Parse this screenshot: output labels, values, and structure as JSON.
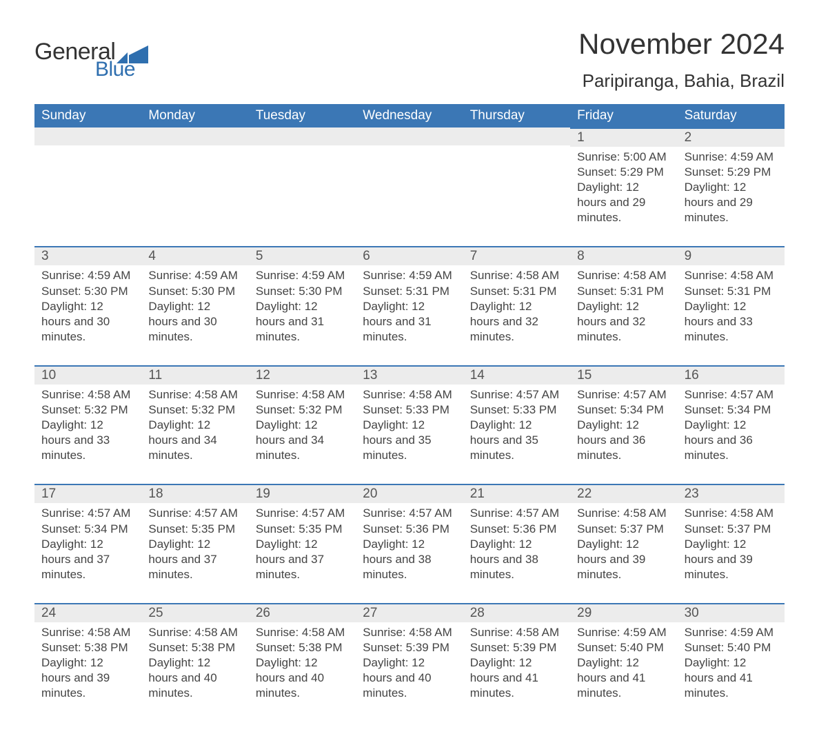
{
  "logo": {
    "word1": "General",
    "word2": "Blue",
    "flag_color": "#2f6faf",
    "text_color": "#333333"
  },
  "title": "November 2024",
  "location": "Paripiranga, Bahia, Brazil",
  "colors": {
    "header_bg": "#3b77b5",
    "header_text": "#ffffff",
    "band_bg": "#ececec",
    "band_border": "#3b77b5",
    "body_text": "#444444",
    "page_bg": "#ffffff"
  },
  "weekdays": [
    "Sunday",
    "Monday",
    "Tuesday",
    "Wednesday",
    "Thursday",
    "Friday",
    "Saturday"
  ],
  "labels": {
    "sunrise": "Sunrise: ",
    "sunset": "Sunset: ",
    "daylight": "Daylight: "
  },
  "weeks": [
    [
      null,
      null,
      null,
      null,
      null,
      {
        "n": "1",
        "sunrise": "5:00 AM",
        "sunset": "5:29 PM",
        "daylight": "12 hours and 29 minutes."
      },
      {
        "n": "2",
        "sunrise": "4:59 AM",
        "sunset": "5:29 PM",
        "daylight": "12 hours and 29 minutes."
      }
    ],
    [
      {
        "n": "3",
        "sunrise": "4:59 AM",
        "sunset": "5:30 PM",
        "daylight": "12 hours and 30 minutes."
      },
      {
        "n": "4",
        "sunrise": "4:59 AM",
        "sunset": "5:30 PM",
        "daylight": "12 hours and 30 minutes."
      },
      {
        "n": "5",
        "sunrise": "4:59 AM",
        "sunset": "5:30 PM",
        "daylight": "12 hours and 31 minutes."
      },
      {
        "n": "6",
        "sunrise": "4:59 AM",
        "sunset": "5:31 PM",
        "daylight": "12 hours and 31 minutes."
      },
      {
        "n": "7",
        "sunrise": "4:58 AM",
        "sunset": "5:31 PM",
        "daylight": "12 hours and 32 minutes."
      },
      {
        "n": "8",
        "sunrise": "4:58 AM",
        "sunset": "5:31 PM",
        "daylight": "12 hours and 32 minutes."
      },
      {
        "n": "9",
        "sunrise": "4:58 AM",
        "sunset": "5:31 PM",
        "daylight": "12 hours and 33 minutes."
      }
    ],
    [
      {
        "n": "10",
        "sunrise": "4:58 AM",
        "sunset": "5:32 PM",
        "daylight": "12 hours and 33 minutes."
      },
      {
        "n": "11",
        "sunrise": "4:58 AM",
        "sunset": "5:32 PM",
        "daylight": "12 hours and 34 minutes."
      },
      {
        "n": "12",
        "sunrise": "4:58 AM",
        "sunset": "5:32 PM",
        "daylight": "12 hours and 34 minutes."
      },
      {
        "n": "13",
        "sunrise": "4:58 AM",
        "sunset": "5:33 PM",
        "daylight": "12 hours and 35 minutes."
      },
      {
        "n": "14",
        "sunrise": "4:57 AM",
        "sunset": "5:33 PM",
        "daylight": "12 hours and 35 minutes."
      },
      {
        "n": "15",
        "sunrise": "4:57 AM",
        "sunset": "5:34 PM",
        "daylight": "12 hours and 36 minutes."
      },
      {
        "n": "16",
        "sunrise": "4:57 AM",
        "sunset": "5:34 PM",
        "daylight": "12 hours and 36 minutes."
      }
    ],
    [
      {
        "n": "17",
        "sunrise": "4:57 AM",
        "sunset": "5:34 PM",
        "daylight": "12 hours and 37 minutes."
      },
      {
        "n": "18",
        "sunrise": "4:57 AM",
        "sunset": "5:35 PM",
        "daylight": "12 hours and 37 minutes."
      },
      {
        "n": "19",
        "sunrise": "4:57 AM",
        "sunset": "5:35 PM",
        "daylight": "12 hours and 37 minutes."
      },
      {
        "n": "20",
        "sunrise": "4:57 AM",
        "sunset": "5:36 PM",
        "daylight": "12 hours and 38 minutes."
      },
      {
        "n": "21",
        "sunrise": "4:57 AM",
        "sunset": "5:36 PM",
        "daylight": "12 hours and 38 minutes."
      },
      {
        "n": "22",
        "sunrise": "4:58 AM",
        "sunset": "5:37 PM",
        "daylight": "12 hours and 39 minutes."
      },
      {
        "n": "23",
        "sunrise": "4:58 AM",
        "sunset": "5:37 PM",
        "daylight": "12 hours and 39 minutes."
      }
    ],
    [
      {
        "n": "24",
        "sunrise": "4:58 AM",
        "sunset": "5:38 PM",
        "daylight": "12 hours and 39 minutes."
      },
      {
        "n": "25",
        "sunrise": "4:58 AM",
        "sunset": "5:38 PM",
        "daylight": "12 hours and 40 minutes."
      },
      {
        "n": "26",
        "sunrise": "4:58 AM",
        "sunset": "5:38 PM",
        "daylight": "12 hours and 40 minutes."
      },
      {
        "n": "27",
        "sunrise": "4:58 AM",
        "sunset": "5:39 PM",
        "daylight": "12 hours and 40 minutes."
      },
      {
        "n": "28",
        "sunrise": "4:58 AM",
        "sunset": "5:39 PM",
        "daylight": "12 hours and 41 minutes."
      },
      {
        "n": "29",
        "sunrise": "4:59 AM",
        "sunset": "5:40 PM",
        "daylight": "12 hours and 41 minutes."
      },
      {
        "n": "30",
        "sunrise": "4:59 AM",
        "sunset": "5:40 PM",
        "daylight": "12 hours and 41 minutes."
      }
    ]
  ]
}
